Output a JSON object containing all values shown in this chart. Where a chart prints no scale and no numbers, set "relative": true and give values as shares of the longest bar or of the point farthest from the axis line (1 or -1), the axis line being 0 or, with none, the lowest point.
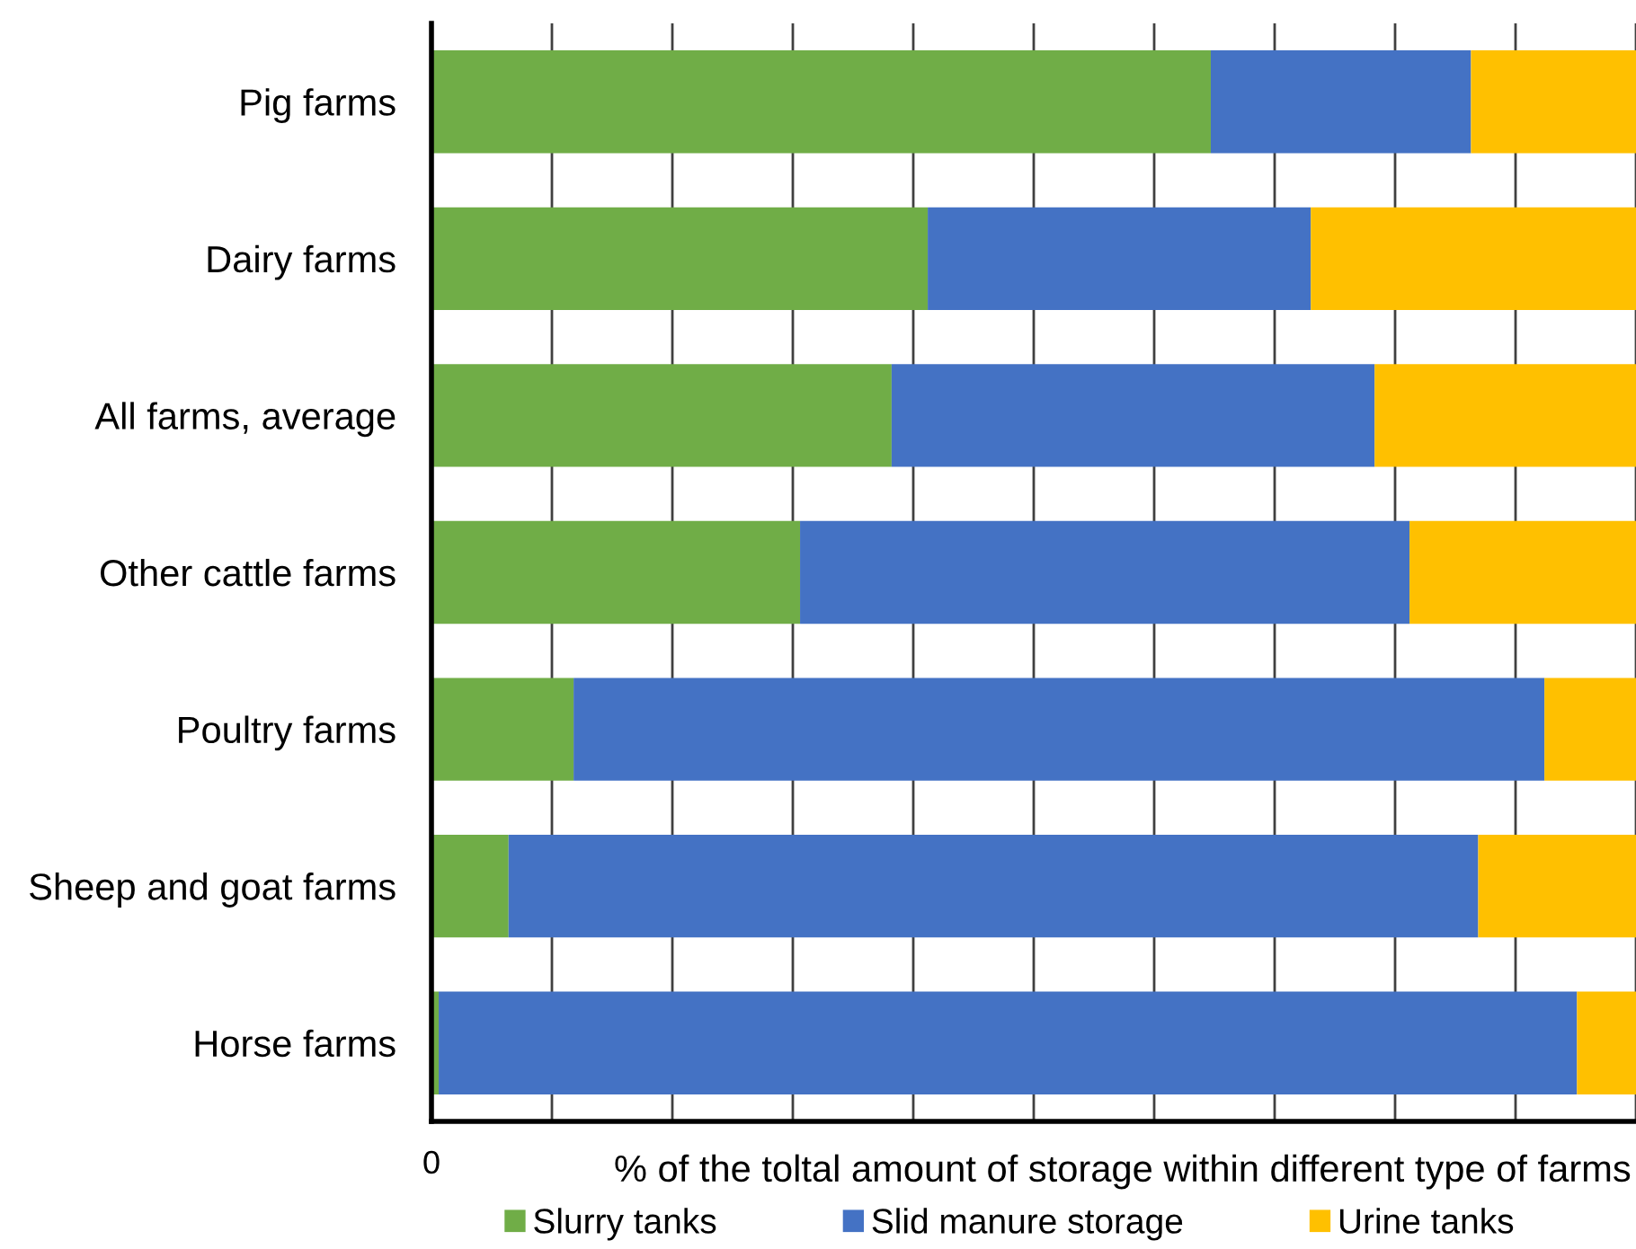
{
  "chart_data": {
    "type": "bar",
    "orientation": "horizontal",
    "stacked": true,
    "relative": true,
    "categories": [
      "Pig farms",
      "Dairy farms",
      "All farms, average",
      "Other cattle farms",
      "Poultry farms",
      "Sheep and goat farms",
      "Horse farms"
    ],
    "series": [
      {
        "name": "Slurry tanks",
        "color": "#70ad47",
        "values": [
          0.647,
          0.412,
          0.382,
          0.306,
          0.118,
          0.064,
          0.006
        ]
      },
      {
        "name": "Slid manure storage",
        "color": "#4472c4",
        "values": [
          0.216,
          0.318,
          0.401,
          0.506,
          0.806,
          0.805,
          0.945
        ]
      },
      {
        "name": "Urine tanks",
        "color": "#ffc000",
        "values": [
          0.137,
          0.27,
          0.217,
          0.188,
          0.076,
          0.131,
          0.049
        ]
      }
    ],
    "annotations": [
      "0"
    ],
    "xlabel": "% of the toltal amount of storage within different type of farms",
    "grid": "x",
    "legend": "bottom"
  }
}
